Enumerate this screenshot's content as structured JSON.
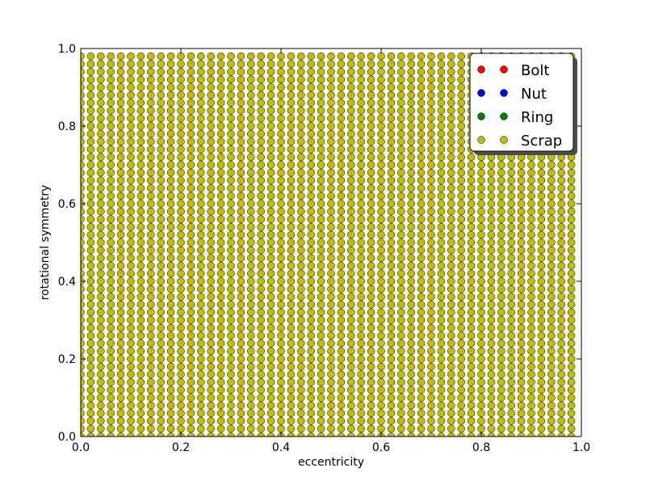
{
  "chart_data": {
    "type": "scatter",
    "title": "",
    "xlabel": "eccentricity",
    "ylabel": "rotational symmetry",
    "xlim": [
      0.0,
      1.0
    ],
    "ylim": [
      0.0,
      1.0
    ],
    "xticks": [
      "0.0",
      "0.2",
      "0.4",
      "0.6",
      "0.8",
      "1.0"
    ],
    "yticks": [
      "0.0",
      "0.2",
      "0.4",
      "0.6",
      "0.8",
      "1.0"
    ],
    "grid": false,
    "legend_position": "top-right",
    "series": [
      {
        "name": "Bolt",
        "color": "#ff0000",
        "grid": null
      },
      {
        "name": "Nut",
        "color": "#0000ff",
        "grid": null
      },
      {
        "name": "Ring",
        "color": "#008000",
        "grid": null
      },
      {
        "name": "Scrap",
        "color": "#bfbf00",
        "grid": {
          "x_start": 0.0,
          "x_end": 0.98,
          "x_step": 0.02,
          "y_start": 0.0,
          "y_end": 0.98,
          "y_step": 0.02
        }
      }
    ]
  }
}
